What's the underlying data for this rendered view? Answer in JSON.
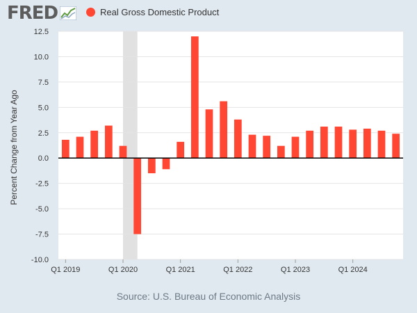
{
  "header": {
    "logo_text": "FRED",
    "logo_icon": "chart-line-icon",
    "legend_label": "Real Gross Domestic Product",
    "series_color": "#ff4733"
  },
  "source": "Source: U.S. Bureau of Economic Analysis",
  "chart_data": {
    "type": "bar",
    "title": "",
    "xlabel": "",
    "ylabel": "Percent Change from Year Ago",
    "ylim": [
      -10,
      12.5
    ],
    "yticks": [
      12.5,
      10,
      7.5,
      5,
      2.5,
      0,
      -2.5,
      -5,
      -7.5,
      -10
    ],
    "ytick_labels": [
      "12.5",
      "10.0",
      "7.5",
      "5.0",
      "2.5",
      "0.0",
      "-2.5",
      "-5.0",
      "-7.5",
      "-10.0"
    ],
    "categories": [
      "Q1 2019",
      "Q2 2019",
      "Q3 2019",
      "Q4 2019",
      "Q1 2020",
      "Q2 2020",
      "Q3 2020",
      "Q4 2020",
      "Q1 2021",
      "Q2 2021",
      "Q3 2021",
      "Q4 2021",
      "Q1 2022",
      "Q2 2022",
      "Q3 2022",
      "Q4 2022",
      "Q1 2023",
      "Q2 2023",
      "Q3 2023",
      "Q4 2023",
      "Q1 2024",
      "Q2 2024",
      "Q3 2024",
      "Q4 2024"
    ],
    "xtick_labels": [
      "Q1 2019",
      "Q1 2020",
      "Q1 2021",
      "Q1 2022",
      "Q1 2023",
      "Q1 2024"
    ],
    "series": [
      {
        "name": "Real Gross Domestic Product",
        "color": "#ff4733",
        "values": [
          1.8,
          2.1,
          2.7,
          3.2,
          1.2,
          -7.5,
          -1.5,
          -1.1,
          1.6,
          12.0,
          4.8,
          5.6,
          3.8,
          2.3,
          2.2,
          1.2,
          2.1,
          2.7,
          3.1,
          3.1,
          2.8,
          2.9,
          2.7,
          2.4
        ]
      }
    ],
    "recession_shading": [
      "Q1 2020",
      "Q2 2020"
    ],
    "recession_color": "#e1e1e1",
    "legend_position": "top-left",
    "grid": true,
    "plot_background": "#ffffff",
    "grid_color": "#e4e4e4"
  }
}
